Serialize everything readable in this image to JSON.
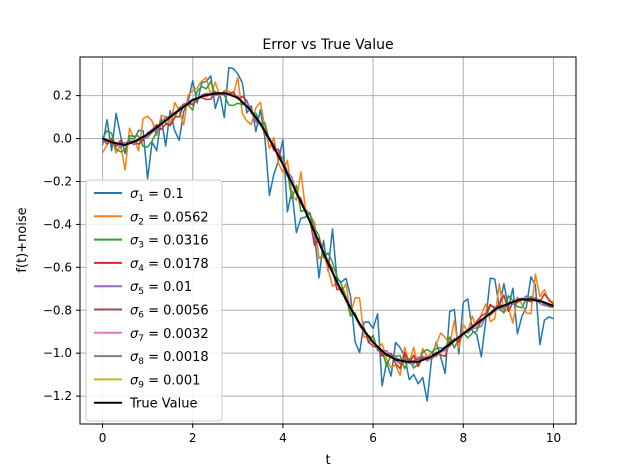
{
  "chart_data": {
    "type": "line",
    "title": "Error vs True Value",
    "xlabel": "t",
    "ylabel": "f(t)+noise",
    "xlim": [
      -0.5,
      10.5
    ],
    "ylim": [
      -1.33,
      0.38
    ],
    "xticks": [
      0,
      2,
      4,
      6,
      8,
      10
    ],
    "xtick_labels": [
      "0",
      "2",
      "4",
      "6",
      "8",
      "10"
    ],
    "yticks": [
      0.2,
      0.0,
      -0.2,
      -0.4,
      -0.6,
      -0.8,
      -1.0,
      -1.2
    ],
    "ytick_labels": [
      "0.2",
      "0.0",
      "−0.2",
      "−0.4",
      "−0.6",
      "−0.8",
      "−1.0",
      "−1.2"
    ],
    "grid": true,
    "legend_position": "lower-left",
    "noise_sigmas": [
      {
        "index": "1",
        "value": "0.1",
        "color": "#1f77b4"
      },
      {
        "index": "2",
        "value": "0.0562",
        "color": "#ff7f0e"
      },
      {
        "index": "3",
        "value": "0.0316",
        "color": "#2ca02c"
      },
      {
        "index": "4",
        "value": "0.0178",
        "color": "#d62728"
      },
      {
        "index": "5",
        "value": "0.01",
        "color": "#9467bd"
      },
      {
        "index": "6",
        "value": "0.0056",
        "color": "#8c564b"
      },
      {
        "index": "7",
        "value": "0.0032",
        "color": "#e377c2"
      },
      {
        "index": "8",
        "value": "0.0018",
        "color": "#7f7f7f"
      },
      {
        "index": "9",
        "value": "0.001",
        "color": "#bcbd22"
      }
    ],
    "true_value": {
      "name": "True Value",
      "color": "#000000",
      "x": [
        0.0,
        0.25,
        0.5,
        0.75,
        1.0,
        1.25,
        1.5,
        1.75,
        2.0,
        2.25,
        2.5,
        2.75,
        3.0,
        3.25,
        3.5,
        3.75,
        4.0,
        4.25,
        4.5,
        4.75,
        5.0,
        5.25,
        5.5,
        5.75,
        6.0,
        6.25,
        6.5,
        6.75,
        7.0,
        7.25,
        7.5,
        7.75,
        8.0,
        8.25,
        8.5,
        8.75,
        9.0,
        9.25,
        9.5,
        9.75,
        10.0
      ],
      "y": [
        0.0,
        -0.02,
        -0.03,
        -0.01,
        0.02,
        0.06,
        0.1,
        0.14,
        0.18,
        0.2,
        0.21,
        0.21,
        0.19,
        0.14,
        0.07,
        -0.02,
        -0.12,
        -0.23,
        -0.34,
        -0.46,
        -0.58,
        -0.69,
        -0.79,
        -0.88,
        -0.95,
        -1.0,
        -1.03,
        -1.04,
        -1.04,
        -1.02,
        -0.99,
        -0.95,
        -0.91,
        -0.87,
        -0.83,
        -0.79,
        -0.77,
        -0.75,
        -0.75,
        -0.76,
        -0.78
      ]
    }
  }
}
